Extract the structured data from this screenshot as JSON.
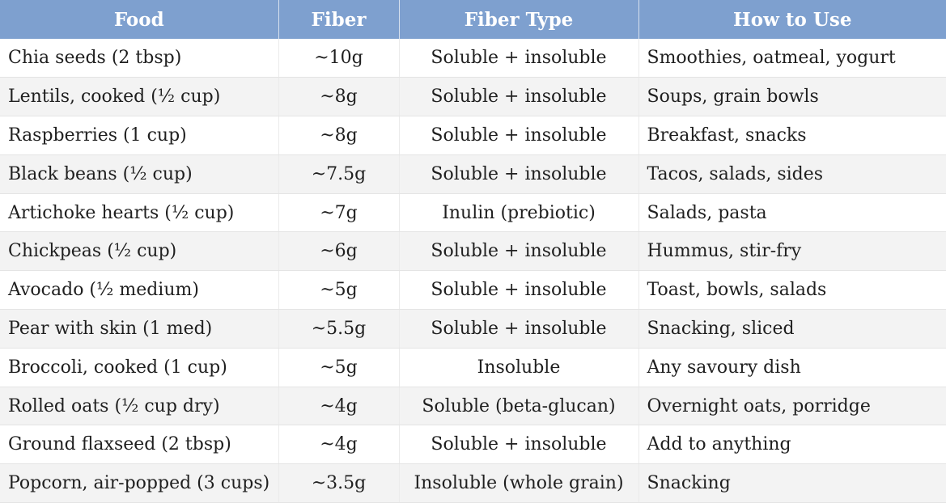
{
  "table": {
    "headers": {
      "food": "Food",
      "fiber": "Fiber",
      "fiber_type": "Fiber Type",
      "how_to_use": "How to Use"
    },
    "rows": [
      {
        "food": "Chia seeds (2 tbsp)",
        "fiber": "~10g",
        "fiber_type": "Soluble + insoluble",
        "how_to_use": "Smoothies, oatmeal, yogurt"
      },
      {
        "food": "Lentils, cooked (½ cup)",
        "fiber": "~8g",
        "fiber_type": "Soluble + insoluble",
        "how_to_use": "Soups, grain bowls"
      },
      {
        "food": "Raspberries (1 cup)",
        "fiber": "~8g",
        "fiber_type": "Soluble + insoluble",
        "how_to_use": "Breakfast, snacks"
      },
      {
        "food": "Black beans (½ cup)",
        "fiber": "~7.5g",
        "fiber_type": "Soluble + insoluble",
        "how_to_use": "Tacos, salads, sides"
      },
      {
        "food": "Artichoke hearts (½ cup)",
        "fiber": "~7g",
        "fiber_type": "Inulin (prebiotic)",
        "how_to_use": "Salads, pasta"
      },
      {
        "food": "Chickpeas (½ cup)",
        "fiber": "~6g",
        "fiber_type": "Soluble + insoluble",
        "how_to_use": "Hummus, stir-fry"
      },
      {
        "food": "Avocado (½ medium)",
        "fiber": "~5g",
        "fiber_type": "Soluble + insoluble",
        "how_to_use": "Toast, bowls, salads"
      },
      {
        "food": "Pear with skin (1 med)",
        "fiber": "~5.5g",
        "fiber_type": "Soluble + insoluble",
        "how_to_use": "Snacking, sliced"
      },
      {
        "food": "Broccoli, cooked (1 cup)",
        "fiber": "~5g",
        "fiber_type": "Insoluble",
        "how_to_use": "Any savoury dish"
      },
      {
        "food": "Rolled oats (½ cup dry)",
        "fiber": "~4g",
        "fiber_type": "Soluble (beta-glucan)",
        "how_to_use": "Overnight oats, porridge"
      },
      {
        "food": "Ground flaxseed (2 tbsp)",
        "fiber": "~4g",
        "fiber_type": "Soluble + insoluble",
        "how_to_use": "Add to anything"
      },
      {
        "food": "Popcorn, air-popped (3 cups)",
        "fiber": "~3.5g",
        "fiber_type": "Insoluble (whole grain)",
        "how_to_use": "Snacking"
      }
    ]
  },
  "colors": {
    "header_bg": "#7ea0cf",
    "header_text": "#ffffff",
    "stripe_bg": "#f3f3f3"
  }
}
